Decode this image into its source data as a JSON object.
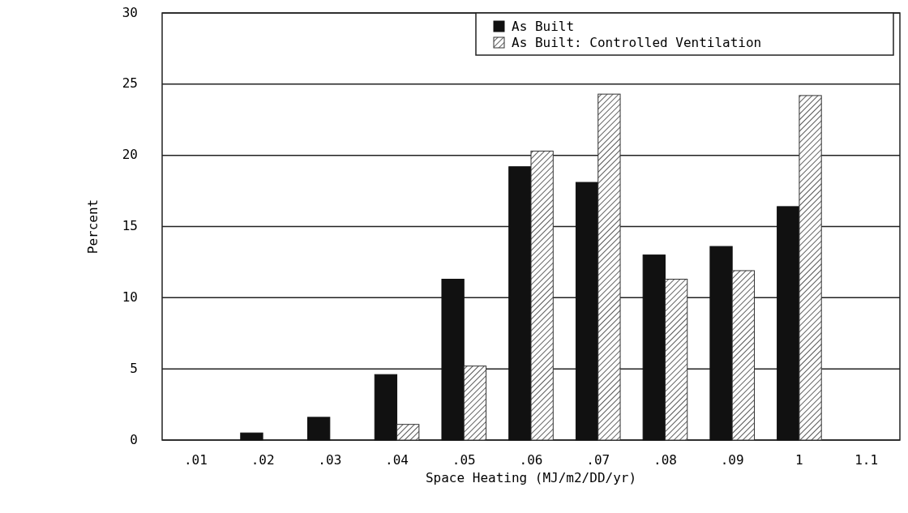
{
  "chart_data": {
    "type": "bar",
    "xlabel": "Space Heating (MJ/m2/DD/yr)",
    "ylabel": "Percent",
    "categories": [
      ".01",
      ".02",
      ".03",
      ".04",
      ".05",
      ".06",
      ".07",
      ".08",
      ".09",
      "1",
      "1.1"
    ],
    "series": [
      {
        "name": "As Built",
        "color": "#111111",
        "values": [
          0,
          0.5,
          1.6,
          4.6,
          11.3,
          19.2,
          18.1,
          13.0,
          13.6,
          16.4,
          0
        ]
      },
      {
        "name": "As Built: Controlled Ventilation",
        "color": "#333333",
        "values": [
          0,
          0,
          0,
          1.1,
          5.2,
          20.3,
          24.3,
          11.3,
          11.9,
          24.2,
          0
        ]
      }
    ],
    "ylim": [
      0,
      30
    ],
    "yticks": [
      0,
      5,
      10,
      15,
      20,
      25,
      30
    ],
    "grid": "y",
    "legend": "top right"
  }
}
